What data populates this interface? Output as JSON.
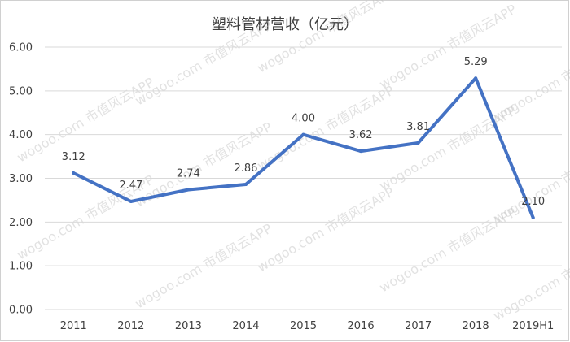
{
  "chart_data": {
    "type": "line",
    "title": "塑料管材营收（亿元）",
    "categories": [
      "2011",
      "2012",
      "2013",
      "2014",
      "2015",
      "2016",
      "2017",
      "2018",
      "2019H1"
    ],
    "series": [
      {
        "values": [
          3.12,
          2.47,
          2.74,
          2.86,
          4.0,
          3.62,
          3.81,
          5.29,
          2.1
        ]
      }
    ],
    "data_labels": [
      "3.12",
      "2.47",
      "2.74",
      "2.86",
      "4.00",
      "3.62",
      "3.81",
      "5.29",
      "2.10"
    ],
    "ylim": [
      0,
      6
    ],
    "y_ticks": [
      "0.00",
      "1.00",
      "2.00",
      "3.00",
      "4.00",
      "5.00",
      "6.00"
    ],
    "grid": "horizontal",
    "legend": "none",
    "line_color": "#4472c4"
  },
  "watermark": {
    "line1": "wogoo.com",
    "line2": "市值风云APP"
  }
}
